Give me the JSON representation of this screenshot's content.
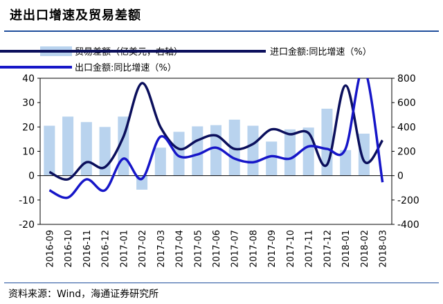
{
  "title": "进出口增速及贸易差额",
  "source": "资料来源：Wind，海通证券研究所",
  "colors": {
    "bar": "#b9d3ee",
    "import_line": "#0b0f5c",
    "export_line": "#1616c8",
    "title_rule": "#1f4e9c"
  },
  "chart_data": {
    "type": "bar+line",
    "categories": [
      "2016-09",
      "2016-10",
      "2016-11",
      "2016-12",
      "2017-01",
      "2017-02",
      "2017-03",
      "2017-04",
      "2017-05",
      "2017-06",
      "2017-07",
      "2017-08",
      "2017-09",
      "2017-10",
      "2017-11",
      "2017-12",
      "2018-01",
      "2018-02",
      "2018-03"
    ],
    "left_axis": {
      "ylim": [
        -20,
        40
      ],
      "ticks": [
        -20,
        -10,
        0,
        10,
        20,
        30,
        40
      ]
    },
    "right_axis": {
      "ylim": [
        -400,
        800
      ],
      "ticks": [
        -400,
        -200,
        0,
        200,
        400,
        600,
        800
      ]
    },
    "legend": [
      "贸易差额（亿美元，右轴）",
      "进口金额:同比增速（%）",
      "出口金额:同比增速（%）"
    ],
    "series": [
      {
        "name": "贸易差额（亿美元，右轴）",
        "type": "bar",
        "axis": "right",
        "values": [
          410,
          485,
          440,
          400,
          485,
          -115,
          230,
          360,
          405,
          415,
          460,
          410,
          280,
          380,
          395,
          550,
          210,
          345,
          0
        ]
      },
      {
        "name": "进口金额:同比增速（%）",
        "type": "line",
        "axis": "left",
        "values": [
          1.5,
          -1.5,
          5.5,
          3.5,
          16,
          38,
          20,
          11,
          14.5,
          16.5,
          11,
          13,
          19,
          17,
          17.5,
          4.5,
          37,
          6,
          14.5
        ]
      },
      {
        "name": "出口金额:同比增速（%）",
        "type": "line",
        "axis": "left",
        "values": [
          -6,
          -9,
          -1.5,
          -6,
          7,
          -1.3,
          16,
          8,
          8.7,
          11.5,
          7,
          5.5,
          8,
          7,
          12,
          11,
          11,
          44,
          -2.7
        ]
      }
    ]
  }
}
